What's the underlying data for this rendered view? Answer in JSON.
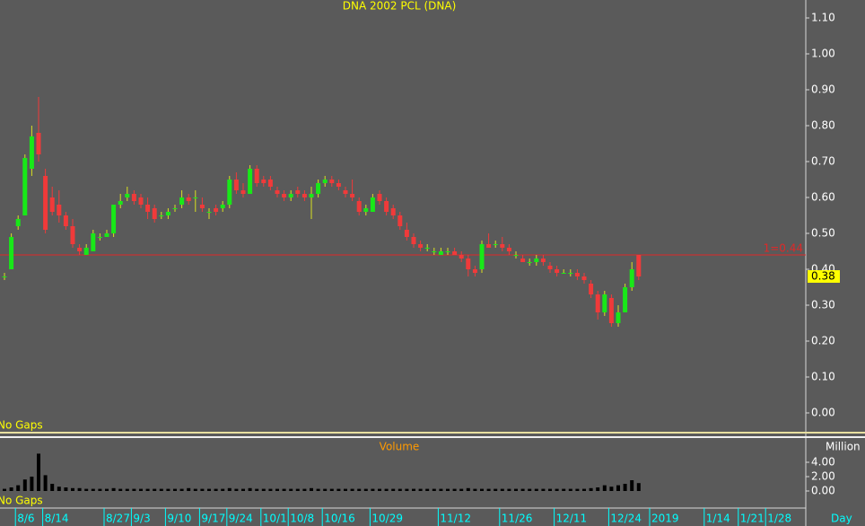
{
  "chart_data": {
    "type": "candlestick",
    "title": "DNA 2002 PCL (DNA)",
    "note": "No Gaps",
    "up_color": "#18e818",
    "down_color": "#f03a3a",
    "categories": [
      null,
      null,
      "8/6",
      null,
      null,
      null,
      "8/14",
      null,
      null,
      null,
      null,
      null,
      null,
      null,
      null,
      "8/27",
      null,
      null,
      null,
      "9/3",
      null,
      null,
      null,
      null,
      "9/10",
      null,
      null,
      null,
      null,
      "9/17",
      null,
      null,
      null,
      "9/24",
      null,
      null,
      null,
      null,
      "10/1",
      null,
      null,
      null,
      "10/8",
      null,
      null,
      null,
      null,
      "10/16",
      null,
      null,
      null,
      null,
      null,
      null,
      "10/29",
      null,
      null,
      null,
      null,
      null,
      null,
      null,
      null,
      null,
      "11/12",
      null,
      null,
      null,
      null,
      null,
      null,
      null,
      null,
      "11/26",
      null,
      null,
      null,
      null,
      null,
      null,
      null,
      "12/11",
      null,
      null,
      null,
      null,
      null,
      null,
      null,
      "12/24",
      null,
      null,
      null,
      null,
      null,
      "2019",
      null,
      null,
      null,
      null,
      null,
      null,
      null,
      "1/14",
      null,
      null,
      null,
      null,
      "1/21",
      null,
      null,
      null,
      "1/28",
      null,
      null,
      null,
      null,
      null
    ],
    "open": [
      0.38,
      0.4,
      0.52,
      0.55,
      0.68,
      0.78,
      0.66,
      0.6,
      0.58,
      0.55,
      0.52,
      0.46,
      0.44,
      0.45,
      0.49,
      0.49,
      0.5,
      0.58,
      0.6,
      0.61,
      0.6,
      0.58,
      0.57,
      0.55,
      0.55,
      0.57,
      0.58,
      0.6,
      0.6,
      0.58,
      0.56,
      0.57,
      0.57,
      0.58,
      0.65,
      0.62,
      0.61,
      0.68,
      0.65,
      0.65,
      0.62,
      0.61,
      0.6,
      0.62,
      0.61,
      0.6,
      0.61,
      0.64,
      0.65,
      0.64,
      0.62,
      0.61,
      0.59,
      0.56,
      0.56,
      0.61,
      0.59,
      0.57,
      0.55,
      0.51,
      0.49,
      0.47,
      0.46,
      0.45,
      0.44,
      0.45,
      0.45,
      0.44,
      0.43,
      0.4,
      0.4,
      0.47,
      0.47,
      0.47,
      0.46,
      0.44,
      0.43,
      0.42,
      0.42,
      0.43,
      0.41,
      0.4,
      0.39,
      0.39,
      0.39,
      0.38,
      0.36,
      0.33,
      0.28,
      0.32,
      0.25,
      0.28,
      0.35,
      0.44,
      null,
      null,
      null,
      null,
      null,
      null,
      null,
      null,
      null,
      null,
      null,
      null,
      null,
      null,
      null,
      null,
      null,
      null,
      null,
      null,
      null,
      null,
      null,
      null
    ],
    "high": [
      0.39,
      0.5,
      0.55,
      0.72,
      0.8,
      0.88,
      0.68,
      0.63,
      0.62,
      0.56,
      0.54,
      0.47,
      0.47,
      0.51,
      0.5,
      0.51,
      0.58,
      0.61,
      0.63,
      0.62,
      0.61,
      0.6,
      0.58,
      0.56,
      0.57,
      0.58,
      0.62,
      0.61,
      0.62,
      0.6,
      0.57,
      0.58,
      0.59,
      0.66,
      0.67,
      0.64,
      0.69,
      0.69,
      0.66,
      0.66,
      0.63,
      0.62,
      0.62,
      0.63,
      0.62,
      0.63,
      0.65,
      0.66,
      0.66,
      0.65,
      0.63,
      0.65,
      0.6,
      0.58,
      0.61,
      0.62,
      0.6,
      0.58,
      0.56,
      0.53,
      0.5,
      0.48,
      0.47,
      0.46,
      0.46,
      0.46,
      0.46,
      0.45,
      0.44,
      0.41,
      0.48,
      0.5,
      0.48,
      0.49,
      0.47,
      0.45,
      0.44,
      0.43,
      0.44,
      0.44,
      0.42,
      0.41,
      0.4,
      0.4,
      0.4,
      0.39,
      0.37,
      0.34,
      0.34,
      0.33,
      0.3,
      0.36,
      0.42,
      0.44,
      null,
      null,
      null,
      null,
      null,
      null,
      null,
      null,
      null,
      null,
      null,
      null,
      null,
      null,
      null,
      null,
      null,
      null,
      null,
      null,
      null,
      null,
      null,
      null
    ],
    "low": [
      0.37,
      0.4,
      0.51,
      0.55,
      0.66,
      0.7,
      0.5,
      0.55,
      0.53,
      0.51,
      0.46,
      0.44,
      0.44,
      0.45,
      0.48,
      0.49,
      0.49,
      0.57,
      0.59,
      0.58,
      0.57,
      0.54,
      0.53,
      0.54,
      0.54,
      0.56,
      0.57,
      0.58,
      0.56,
      0.56,
      0.54,
      0.55,
      0.56,
      0.57,
      0.61,
      0.6,
      0.61,
      0.63,
      0.63,
      0.62,
      0.6,
      0.59,
      0.59,
      0.6,
      0.59,
      0.54,
      0.6,
      0.63,
      0.63,
      0.62,
      0.6,
      0.59,
      0.55,
      0.55,
      0.56,
      0.58,
      0.55,
      0.54,
      0.51,
      0.48,
      0.46,
      0.45,
      0.45,
      0.44,
      0.44,
      0.44,
      0.44,
      0.42,
      0.38,
      0.38,
      0.39,
      0.46,
      0.46,
      0.45,
      0.44,
      0.43,
      0.42,
      0.41,
      0.41,
      0.41,
      0.39,
      0.38,
      0.39,
      0.38,
      0.37,
      0.36,
      0.32,
      0.26,
      0.27,
      0.24,
      0.24,
      0.28,
      0.34,
      0.37,
      null,
      null,
      null,
      null,
      null,
      null,
      null,
      null,
      null,
      null,
      null,
      null,
      null,
      null,
      null,
      null,
      null,
      null,
      null,
      null,
      null,
      null,
      null,
      null
    ],
    "close": [
      0.38,
      0.49,
      0.54,
      0.71,
      0.77,
      0.72,
      0.51,
      0.56,
      0.55,
      0.52,
      0.47,
      0.45,
      0.46,
      0.5,
      0.49,
      0.5,
      0.58,
      0.59,
      0.61,
      0.59,
      0.58,
      0.56,
      0.54,
      0.55,
      0.56,
      0.57,
      0.6,
      0.59,
      0.6,
      0.57,
      0.56,
      0.56,
      0.58,
      0.65,
      0.62,
      0.61,
      0.68,
      0.64,
      0.64,
      0.63,
      0.61,
      0.6,
      0.61,
      0.61,
      0.6,
      0.61,
      0.64,
      0.65,
      0.64,
      0.63,
      0.61,
      0.6,
      0.56,
      0.57,
      0.6,
      0.59,
      0.56,
      0.55,
      0.52,
      0.49,
      0.47,
      0.46,
      0.46,
      0.45,
      0.45,
      0.45,
      0.44,
      0.43,
      0.4,
      0.39,
      0.47,
      0.46,
      0.47,
      0.46,
      0.45,
      0.44,
      0.42,
      0.42,
      0.43,
      0.42,
      0.4,
      0.39,
      0.39,
      0.39,
      0.38,
      0.37,
      0.33,
      0.28,
      0.33,
      0.25,
      0.28,
      0.35,
      0.4,
      0.38,
      null,
      null,
      null,
      null,
      null,
      null,
      null,
      null,
      null,
      null,
      null,
      null,
      null,
      null,
      null,
      null,
      null,
      null,
      null,
      null,
      null,
      null,
      null,
      null
    ],
    "ylim": [
      -0.05,
      1.15
    ],
    "yticks": [
      {
        "value": 0,
        "label": "0.00"
      },
      {
        "value": 0.1,
        "label": "0.10"
      },
      {
        "value": 0.2,
        "label": "0.20"
      },
      {
        "value": 0.3,
        "label": "0.30"
      },
      {
        "value": 0.4,
        "label": "0.40"
      },
      {
        "value": 0.5,
        "label": "0.50"
      },
      {
        "value": 0.6,
        "label": "0.60"
      },
      {
        "value": 0.7,
        "label": "0.70"
      },
      {
        "value": 0.8,
        "label": "0.80"
      },
      {
        "value": 0.9,
        "label": "0.90"
      },
      {
        "value": 1,
        "label": "1.00"
      },
      {
        "value": 1.1,
        "label": "1.10"
      }
    ],
    "hline": {
      "value": 0.44,
      "label": "1=0.44",
      "color": "#e02828"
    },
    "last_price": {
      "value": 0.38,
      "label": "0.38"
    },
    "x_unit": "Day",
    "volume": {
      "title": "Volume",
      "unit": "Million",
      "note": "No Gaps",
      "color": "#000000",
      "values": [
        0.3,
        0.5,
        0.8,
        1.6,
        2.0,
        5.2,
        2.2,
        1.0,
        0.6,
        0.5,
        0.4,
        0.4,
        0.3,
        0.3,
        0.3,
        0.3,
        0.4,
        0.3,
        0.3,
        0.3,
        0.3,
        0.3,
        0.3,
        0.3,
        0.3,
        0.3,
        0.3,
        0.4,
        0.3,
        0.3,
        0.3,
        0.3,
        0.3,
        0.4,
        0.3,
        0.3,
        0.4,
        0.3,
        0.3,
        0.3,
        0.3,
        0.3,
        0.3,
        0.3,
        0.3,
        0.4,
        0.3,
        0.3,
        0.3,
        0.3,
        0.3,
        0.3,
        0.3,
        0.3,
        0.3,
        0.3,
        0.3,
        0.3,
        0.3,
        0.3,
        0.3,
        0.3,
        0.3,
        0.3,
        0.3,
        0.3,
        0.3,
        0.3,
        0.4,
        0.3,
        0.3,
        0.3,
        0.3,
        0.3,
        0.3,
        0.3,
        0.3,
        0.3,
        0.3,
        0.3,
        0.3,
        0.3,
        0.3,
        0.3,
        0.3,
        0.3,
        0.4,
        0.5,
        0.8,
        0.6,
        0.8,
        1.0,
        1.5,
        1.1,
        null,
        null,
        null,
        null,
        null,
        null,
        null,
        null,
        null,
        null,
        null,
        null,
        null,
        null,
        null,
        null,
        null,
        null,
        null,
        null,
        null,
        null,
        null,
        null
      ],
      "ylim": [
        -2,
        7
      ],
      "yticks": [
        {
          "value": 0,
          "label": "0.00"
        },
        {
          "value": 2,
          "label": "2.00"
        },
        {
          "value": 4,
          "label": "4.00"
        }
      ]
    }
  }
}
